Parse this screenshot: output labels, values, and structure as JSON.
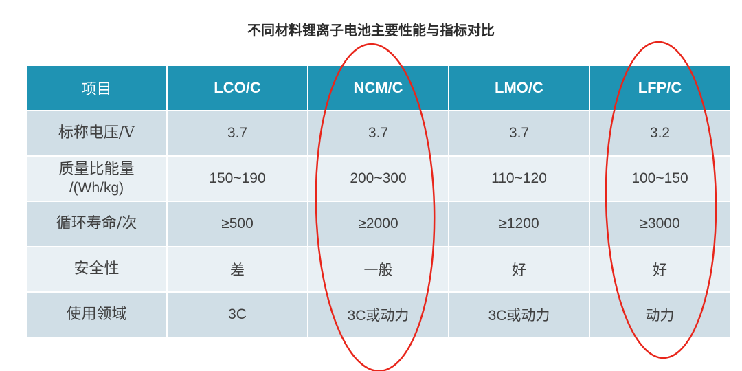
{
  "title": "不同材料锂离子电池主要性能与指标对比",
  "header": [
    "项目",
    "LCO/C",
    "NCM/C",
    "LMO/C",
    "LFP/C"
  ],
  "rows": [
    {
      "label": "标称电压/V",
      "values": [
        "3.7",
        "3.7",
        "3.7",
        "3.2"
      ]
    },
    {
      "label_line1": "质量比能量",
      "label_line2": "/(Wh/kg)",
      "values": [
        "150~190",
        "200~300",
        "110~120",
        "100~150"
      ]
    },
    {
      "label": "循环寿命/次",
      "values": [
        "≥500",
        "≥2000",
        "≥1200",
        "≥3000"
      ]
    },
    {
      "label": "安全性",
      "values": [
        "差",
        "一般",
        "好",
        "好"
      ]
    },
    {
      "label": "使用领域",
      "values": [
        "3C",
        "3C或动力",
        "3C或动力",
        "动力"
      ]
    }
  ],
  "colors": {
    "header_bg": "#1f93b3",
    "row_dark": "#d0dee6",
    "row_light": "#e9f0f4",
    "highlight_ellipse": "#e8261b"
  }
}
